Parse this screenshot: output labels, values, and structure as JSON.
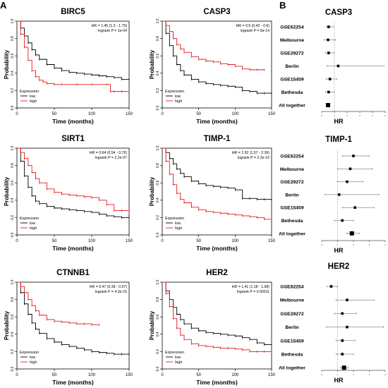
{
  "panel_labels": [
    "A",
    "B"
  ],
  "colors": {
    "low": "#000000",
    "high": "#e41a1c"
  },
  "chart_data": [
    {
      "type": "line",
      "kind": "km",
      "panel": "A",
      "title": "BIRC5",
      "stats": [
        "HR = 1.45 (1.2 - 1.75)",
        "logrank P = 1e-04"
      ],
      "xlabel": "Time (months)",
      "ylabel": "Probability",
      "xlim": [
        0,
        150
      ],
      "ylim": [
        0,
        1
      ],
      "xticks": [
        "0",
        "50",
        "100",
        "150"
      ],
      "yticks": [
        "0.0",
        "0.2",
        "0.4",
        "0.6",
        "0.8",
        "1.0"
      ],
      "legend_title": "Expression",
      "legend_position": "bottom-left",
      "series": [
        {
          "name": "low",
          "x": [
            0,
            5,
            10,
            15,
            20,
            25,
            30,
            40,
            50,
            60,
            70,
            80,
            90,
            100,
            110,
            120,
            130,
            140,
            150
          ],
          "y": [
            1,
            0.92,
            0.83,
            0.75,
            0.67,
            0.61,
            0.56,
            0.5,
            0.46,
            0.43,
            0.41,
            0.4,
            0.39,
            0.38,
            0.37,
            0.36,
            0.35,
            0.33,
            0.33
          ]
        },
        {
          "name": "high",
          "x": [
            0,
            5,
            10,
            15,
            20,
            25,
            30,
            35,
            40,
            50,
            60,
            80,
            100,
            120,
            125,
            130,
            140,
            150
          ],
          "y": [
            1,
            0.85,
            0.7,
            0.55,
            0.43,
            0.36,
            0.32,
            0.3,
            0.28,
            0.27,
            0.27,
            0.27,
            0.27,
            0.27,
            0.19,
            0.19,
            0.19,
            0.19
          ]
        }
      ]
    },
    {
      "type": "line",
      "kind": "km",
      "panel": "A",
      "title": "CASP3",
      "stats": [
        "HR = 0.5 (0.42 - 0.6)",
        "logrank P = 6e-14"
      ],
      "xlabel": "Time (months)",
      "ylabel": "Probability",
      "xlim": [
        0,
        150
      ],
      "ylim": [
        0,
        1
      ],
      "xticks": [
        "0",
        "50",
        "100",
        "150"
      ],
      "yticks": [
        "0.0",
        "0.2",
        "0.4",
        "0.6",
        "0.8",
        "1.0"
      ],
      "legend_title": "Expression",
      "legend_position": "bottom-left",
      "series": [
        {
          "name": "low",
          "x": [
            0,
            5,
            10,
            15,
            20,
            25,
            30,
            40,
            50,
            60,
            70,
            80,
            90,
            100,
            110,
            120,
            130,
            140,
            150
          ],
          "y": [
            1,
            0.86,
            0.72,
            0.6,
            0.5,
            0.43,
            0.38,
            0.33,
            0.3,
            0.28,
            0.27,
            0.26,
            0.25,
            0.24,
            0.2,
            0.19,
            0.17,
            0.17,
            0.17
          ]
        },
        {
          "name": "high",
          "x": [
            0,
            5,
            10,
            15,
            20,
            25,
            30,
            40,
            50,
            60,
            70,
            80,
            90,
            100,
            110,
            120,
            130,
            140
          ],
          "y": [
            1,
            0.95,
            0.88,
            0.8,
            0.73,
            0.68,
            0.64,
            0.59,
            0.56,
            0.54,
            0.53,
            0.51,
            0.5,
            0.48,
            0.45,
            0.44,
            0.44,
            0.44
          ]
        }
      ]
    },
    {
      "type": "line",
      "kind": "km",
      "panel": "A",
      "title": "SIRT1",
      "stats": [
        "HR = 0.64 (0.54 - 0.76)",
        "logrank P = 2.2e-07"
      ],
      "xlabel": "Time (months)",
      "ylabel": "Probability",
      "xlim": [
        0,
        150
      ],
      "ylim": [
        0,
        1
      ],
      "xticks": [
        "0",
        "50",
        "100",
        "150"
      ],
      "yticks": [
        "0.0",
        "0.2",
        "0.4",
        "0.6",
        "0.8",
        "1.0"
      ],
      "legend_title": "Expression",
      "legend_position": "bottom-left",
      "series": [
        {
          "name": "low",
          "x": [
            0,
            5,
            10,
            15,
            20,
            25,
            30,
            40,
            50,
            60,
            70,
            80,
            90,
            100,
            110,
            120,
            130,
            140,
            150
          ],
          "y": [
            1,
            0.85,
            0.68,
            0.55,
            0.45,
            0.39,
            0.36,
            0.33,
            0.31,
            0.3,
            0.29,
            0.28,
            0.27,
            0.26,
            0.24,
            0.22,
            0.21,
            0.2,
            0.2
          ]
        },
        {
          "name": "high",
          "x": [
            0,
            5,
            10,
            15,
            20,
            25,
            30,
            40,
            50,
            60,
            70,
            80,
            90,
            100,
            110,
            120,
            130,
            140,
            150
          ],
          "y": [
            1,
            0.95,
            0.88,
            0.8,
            0.72,
            0.65,
            0.6,
            0.53,
            0.49,
            0.47,
            0.46,
            0.45,
            0.44,
            0.43,
            0.4,
            0.35,
            0.28,
            0.28,
            0.28
          ]
        }
      ]
    },
    {
      "type": "line",
      "kind": "km",
      "panel": "A",
      "title": "TIMP-1",
      "stats": [
        "HR = 1.92 (1.57 - 2.36)",
        "logrank P = 2.2e-10"
      ],
      "xlabel": "Time (months)",
      "ylabel": "Probability",
      "xlim": [
        0,
        150
      ],
      "ylim": [
        0,
        1
      ],
      "xticks": [
        "0",
        "50",
        "100",
        "150"
      ],
      "yticks": [
        "0.0",
        "0.2",
        "0.4",
        "0.6",
        "0.8",
        "1.0"
      ],
      "legend_title": "Expression",
      "legend_position": "bottom-left",
      "series": [
        {
          "name": "low",
          "x": [
            0,
            5,
            10,
            15,
            20,
            25,
            30,
            40,
            50,
            60,
            70,
            80,
            90,
            100,
            110,
            120,
            130,
            140,
            150
          ],
          "y": [
            1,
            0.95,
            0.88,
            0.82,
            0.76,
            0.71,
            0.67,
            0.62,
            0.59,
            0.57,
            0.56,
            0.55,
            0.54,
            0.52,
            0.42,
            0.42,
            0.41,
            0.41,
            0.41
          ]
        },
        {
          "name": "high",
          "x": [
            0,
            5,
            10,
            15,
            20,
            25,
            30,
            40,
            50,
            60,
            70,
            80,
            90,
            100,
            110,
            120,
            130,
            140,
            150
          ],
          "y": [
            1,
            0.85,
            0.7,
            0.58,
            0.48,
            0.41,
            0.37,
            0.32,
            0.29,
            0.27,
            0.26,
            0.25,
            0.24,
            0.23,
            0.22,
            0.21,
            0.2,
            0.18,
            0.18
          ]
        }
      ]
    },
    {
      "type": "line",
      "kind": "km",
      "panel": "A",
      "title": "CTNNB1",
      "stats": [
        "HR = 0.47 (0.38 - 0.57)",
        "logrank P = 4.3e-15"
      ],
      "xlabel": "Time (months)",
      "ylabel": "Probability",
      "xlim": [
        0,
        150
      ],
      "ylim": [
        0,
        1
      ],
      "xticks": [
        "0",
        "50",
        "100",
        "150"
      ],
      "yticks": [
        "0.0",
        "0.2",
        "0.4",
        "0.6",
        "0.8",
        "1.0"
      ],
      "legend_title": "Expression",
      "legend_position": "bottom-left",
      "series": [
        {
          "name": "low",
          "x": [
            0,
            5,
            10,
            15,
            20,
            25,
            30,
            40,
            50,
            60,
            70,
            80,
            90,
            100,
            110,
            120,
            130,
            140,
            150
          ],
          "y": [
            1,
            0.88,
            0.75,
            0.63,
            0.53,
            0.46,
            0.41,
            0.35,
            0.31,
            0.28,
            0.26,
            0.24,
            0.22,
            0.2,
            0.19,
            0.18,
            0.17,
            0.17,
            0.17
          ]
        },
        {
          "name": "high",
          "x": [
            0,
            5,
            10,
            15,
            20,
            25,
            30,
            40,
            50,
            60,
            70,
            80,
            90,
            100,
            110
          ],
          "y": [
            1,
            0.95,
            0.88,
            0.8,
            0.73,
            0.67,
            0.62,
            0.57,
            0.55,
            0.54,
            0.53,
            0.52,
            0.52,
            0.51,
            0.51
          ]
        }
      ]
    },
    {
      "type": "line",
      "kind": "km",
      "panel": "A",
      "title": "HER2",
      "stats": [
        "HR = 1.41 (1.18 - 1.68)",
        "logrank P = 0.00011"
      ],
      "xlabel": "Time (months)",
      "ylabel": "Probability",
      "xlim": [
        0,
        150
      ],
      "ylim": [
        0,
        1
      ],
      "xticks": [
        "0",
        "50",
        "100",
        "150"
      ],
      "yticks": [
        "0.0",
        "0.2",
        "0.4",
        "0.6",
        "0.8",
        "1.0"
      ],
      "legend_title": "Expression",
      "legend_position": "bottom-left",
      "series": [
        {
          "name": "low",
          "x": [
            0,
            5,
            10,
            15,
            20,
            25,
            30,
            40,
            50,
            60,
            70,
            80,
            90,
            100,
            110,
            120,
            130,
            140,
            150
          ],
          "y": [
            1,
            0.9,
            0.8,
            0.71,
            0.63,
            0.57,
            0.52,
            0.47,
            0.44,
            0.42,
            0.41,
            0.4,
            0.39,
            0.38,
            0.36,
            0.34,
            0.3,
            0.28,
            0.28
          ]
        },
        {
          "name": "high",
          "x": [
            0,
            5,
            10,
            15,
            20,
            25,
            30,
            40,
            50,
            60,
            70,
            80,
            90,
            100,
            110,
            120,
            130,
            140,
            150
          ],
          "y": [
            1,
            0.87,
            0.72,
            0.58,
            0.47,
            0.39,
            0.34,
            0.29,
            0.27,
            0.26,
            0.25,
            0.24,
            0.24,
            0.23,
            0.22,
            0.2,
            0.2,
            0.2,
            0.2
          ]
        }
      ]
    },
    {
      "type": "scatter",
      "kind": "forest",
      "panel": "B",
      "title": "CASP3",
      "xlabel": "HR",
      "xlim": [
        0,
        5
      ],
      "xticks": [
        "0",
        "1",
        "2",
        "3",
        "4",
        "5"
      ],
      "ref": 1,
      "labels": [
        "GSE62254",
        "Melbourne",
        "GSE29272",
        "Berlin",
        "GSE15459",
        "Bethesda",
        "All together"
      ],
      "hr": [
        0.55,
        0.5,
        0.55,
        1.3,
        0.65,
        0.55,
        0.5
      ],
      "lower": [
        0.35,
        0.2,
        0.3,
        0.4,
        0.35,
        0.3,
        0.42
      ],
      "upper": [
        0.9,
        1.1,
        1.0,
        4.9,
        1.2,
        1.0,
        0.6
      ]
    },
    {
      "type": "scatter",
      "kind": "forest",
      "panel": "B",
      "title": "TIMP-1",
      "xlabel": "HR",
      "xlim": [
        0,
        4
      ],
      "xticks": [
        "0",
        "1",
        "2",
        "3",
        "4"
      ],
      "ref": 1,
      "labels": [
        "GSE62254",
        "Melbourne",
        "GSE29272",
        "Berlin",
        "GSE15459",
        "Bethesda",
        "All together"
      ],
      "hr": [
        2.0,
        1.8,
        1.6,
        1.1,
        2.1,
        1.3,
        1.9
      ],
      "lower": [
        1.3,
        1.0,
        1.0,
        0.2,
        1.3,
        0.8,
        1.57
      ],
      "upper": [
        3.0,
        3.2,
        2.6,
        3.6,
        3.3,
        2.0,
        2.36
      ]
    },
    {
      "type": "scatter",
      "kind": "forest",
      "panel": "B",
      "title": "HER2",
      "xlabel": "HR",
      "xlim": [
        0,
        4
      ],
      "xticks": [
        "0",
        "1",
        "2",
        "3",
        "4"
      ],
      "ref": 1,
      "labels": [
        "GSE62254",
        "Melbourne",
        "GSE29272",
        "Berlin",
        "GSE15459",
        "Bethesda",
        "All together"
      ],
      "hr": [
        0.6,
        1.6,
        1.3,
        1.6,
        1.3,
        1.3,
        1.41
      ],
      "lower": [
        0.35,
        0.9,
        0.8,
        0.3,
        0.9,
        0.9,
        1.18
      ],
      "upper": [
        1.0,
        3.3,
        2.2,
        3.9,
        2.1,
        2.0,
        1.68
      ]
    }
  ]
}
